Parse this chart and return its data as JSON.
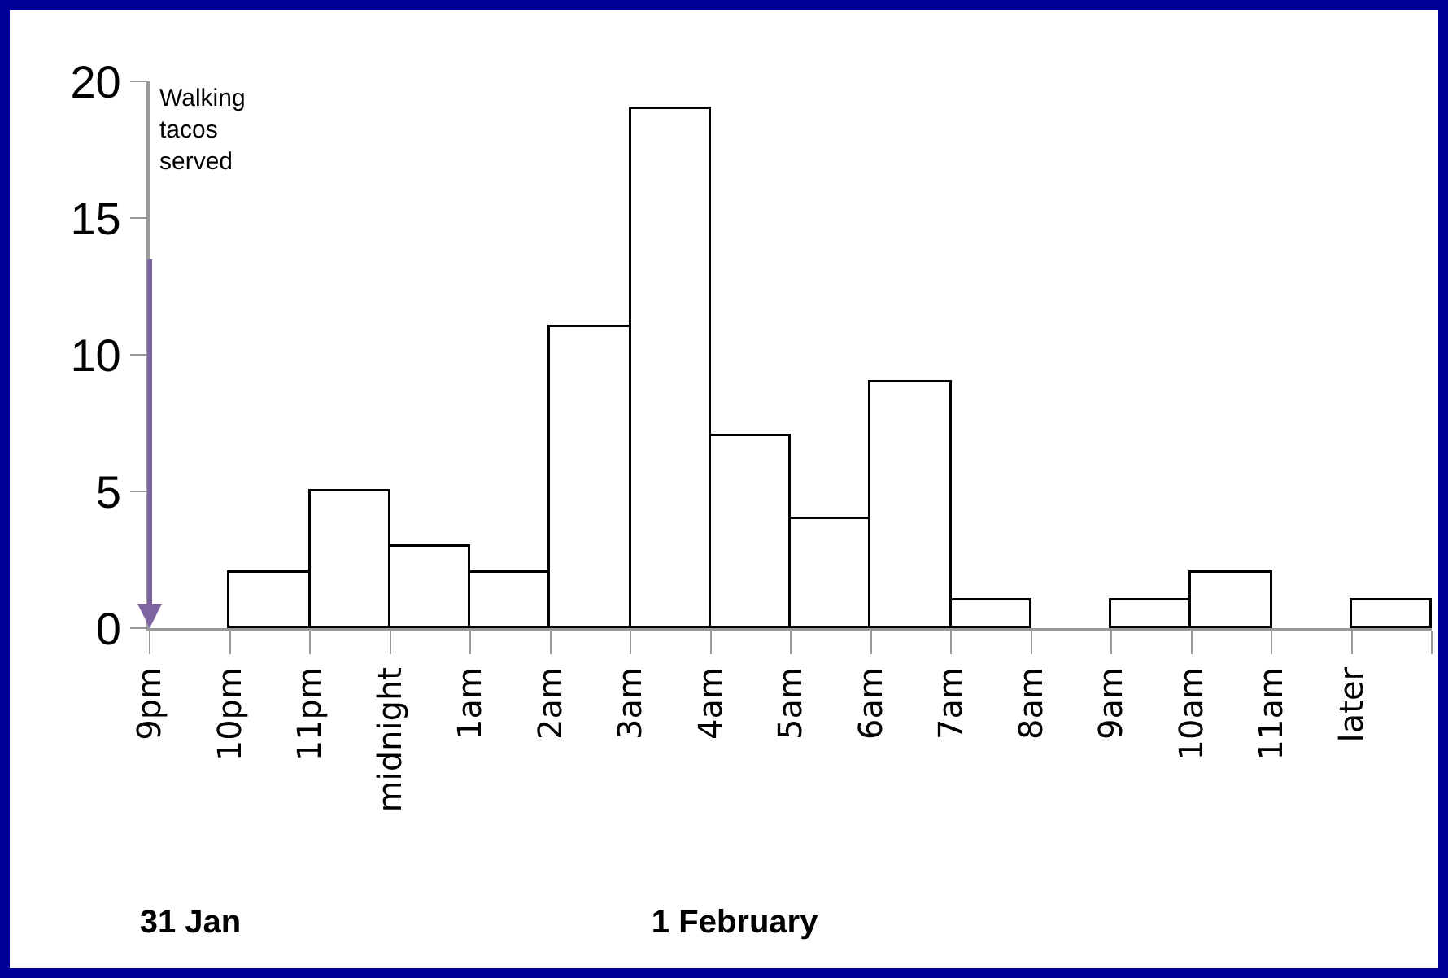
{
  "chart_data": {
    "type": "bar",
    "categories": [
      "9pm",
      "10pm",
      "11pm",
      "midnight",
      "1am",
      "2am",
      "3am",
      "4am",
      "5am",
      "6am",
      "7am",
      "8am",
      "9am",
      "10am",
      "11am",
      "later"
    ],
    "values": [
      0,
      2,
      5,
      3,
      2,
      11,
      19,
      7,
      4,
      9,
      1,
      0,
      1,
      2,
      0,
      1
    ],
    "color": "#ffffff",
    "ylim": [
      0,
      20
    ],
    "yticks": [
      0,
      5,
      10,
      15,
      20
    ],
    "grid": false,
    "annotations": [
      "Walking tacos served",
      "31 Jan",
      "1 February"
    ]
  }
}
